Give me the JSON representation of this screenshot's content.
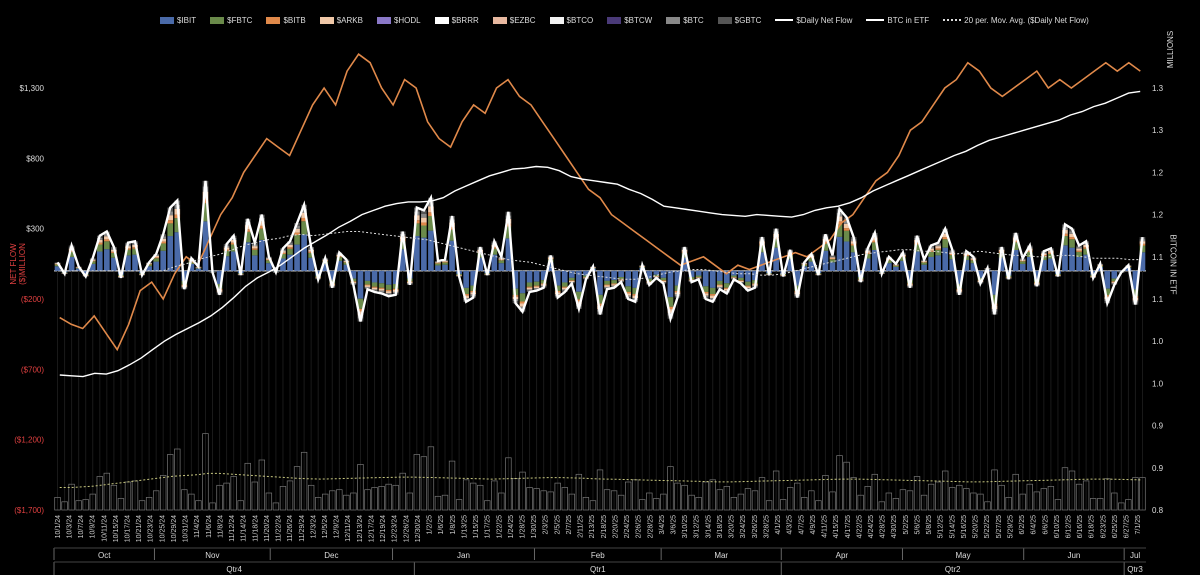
{
  "legend": [
    {
      "label": "$IBIT",
      "color": "#4a6aa8",
      "kind": "box"
    },
    {
      "label": "$FBTC",
      "color": "#6a8a4a",
      "kind": "box"
    },
    {
      "label": "$BITB",
      "color": "#e0894a",
      "kind": "box"
    },
    {
      "label": "$ARKB",
      "color": "#f0c8a8",
      "kind": "box"
    },
    {
      "label": "$HODL",
      "color": "#8a78c8",
      "kind": "box"
    },
    {
      "label": "$BRRR",
      "color": "#ffffff",
      "kind": "box"
    },
    {
      "label": "$EZBC",
      "color": "#e8b8a0",
      "kind": "box"
    },
    {
      "label": "$BTCO",
      "color": "#f2f2f2",
      "kind": "box"
    },
    {
      "label": "$BTCW",
      "color": "#4a3a78",
      "kind": "box"
    },
    {
      "label": "$BTC",
      "color": "#888888",
      "kind": "box"
    },
    {
      "label": "$GBTC",
      "color": "#555555",
      "kind": "box"
    },
    {
      "label": "$Daily Net Flow",
      "color": "#ffffff",
      "kind": "line"
    },
    {
      "label": "BTC in ETF",
      "color": "#ffffff",
      "kind": "line"
    },
    {
      "label": "20 per. Mov. Avg. ($Daily Net Flow)",
      "color": "#dddddd",
      "kind": "dotted"
    }
  ],
  "axes": {
    "left_title": "NET FLOW ($)MILLION",
    "right_title": "BITCOIN IN ETF",
    "right_unit": "MILLIONS",
    "left_ticks": [
      "$1,300",
      "$800",
      "$300",
      "($200)",
      "($700)",
      "($1,200)",
      "($1,700)"
    ],
    "right_ticks": [
      "1.3",
      "1.3",
      "1.2",
      "1.2",
      "1.1",
      "1.1",
      "1.0",
      "1.0",
      "0.9",
      "0.9",
      "0.8"
    ]
  },
  "chart_data": {
    "type": "bar",
    "ylim_left": [
      -1700,
      1300
    ],
    "ylim_right": [
      0.8,
      1.3
    ],
    "date_labels": [
      "10/1/24",
      "10/3/24",
      "10/7/24",
      "10/9/24",
      "10/11/24",
      "10/15/24",
      "10/17/24",
      "10/21/24",
      "10/23/24",
      "10/25/24",
      "10/29/24",
      "10/31/24",
      "11/4/24",
      "11/6/24",
      "11/8/24",
      "11/12/24",
      "11/14/24",
      "11/18/24",
      "11/20/24",
      "11/22/24",
      "11/26/24",
      "11/29/24",
      "12/3/24",
      "12/5/24",
      "12/9/24",
      "12/11/24",
      "12/13/24",
      "12/17/24",
      "12/19/24",
      "12/23/24",
      "12/26/24",
      "12/30/24",
      "1/2/25",
      "1/6/25",
      "1/8/25",
      "1/13/25",
      "1/15/25",
      "1/17/25",
      "1/22/25",
      "1/24/25",
      "1/28/25",
      "1/30/25",
      "2/3/25",
      "2/5/25",
      "2/7/25",
      "2/11/25",
      "2/13/25",
      "2/18/25",
      "2/20/25",
      "2/24/25",
      "2/26/25",
      "2/28/25",
      "3/4/25",
      "3/6/25",
      "3/10/25",
      "3/12/25",
      "3/14/25",
      "3/18/25",
      "3/20/25",
      "3/24/25",
      "3/26/25",
      "3/28/25",
      "4/1/25",
      "4/3/25",
      "4/7/25",
      "4/9/25",
      "4/11/25",
      "4/15/25",
      "4/17/25",
      "4/22/25",
      "4/24/25",
      "4/28/25",
      "4/30/25",
      "5/2/25",
      "5/6/25",
      "5/8/25",
      "5/12/25",
      "5/14/25",
      "5/16/25",
      "5/20/25",
      "5/22/25",
      "5/27/25",
      "5/29/25",
      "6/2/25",
      "6/4/25",
      "6/6/25",
      "6/10/25",
      "6/12/25",
      "6/16/25",
      "6/18/25",
      "6/23/25",
      "6/25/25",
      "6/27/25",
      "7/1/25"
    ],
    "months": [
      "Oct",
      "Nov",
      "Dec",
      "Jan",
      "Feb",
      "Mar",
      "Apr",
      "May",
      "Jun",
      "Jul"
    ],
    "quarters": [
      "Qtr4",
      "Qtr1",
      "Qtr2",
      "Qtr3"
    ],
    "daily_net_flow": [
      60,
      -20,
      180,
      30,
      -40,
      90,
      250,
      280,
      170,
      -50,
      200,
      210,
      -30,
      60,
      120,
      260,
      450,
      500,
      -130,
      90,
      30,
      640,
      -10,
      -170,
      190,
      250,
      -30,
      370,
      200,
      400,
      100,
      -10,
      160,
      210,
      340,
      470,
      170,
      -60,
      90,
      -120,
      130,
      80,
      -100,
      -360,
      -130,
      -150,
      -160,
      -180,
      -170,
      280,
      -100,
      450,
      430,
      520,
      70,
      80,
      390,
      -40,
      -220,
      -190,
      170,
      -30,
      210,
      100,
      420,
      -230,
      -290,
      -150,
      -140,
      -120,
      110,
      -190,
      -150,
      -90,
      -270,
      -60,
      30,
      -310,
      -130,
      -120,
      -80,
      -200,
      -220,
      40,
      -100,
      -50,
      -90,
      -340,
      -190,
      170,
      -80,
      -60,
      -200,
      -220,
      -130,
      -160,
      -60,
      -90,
      -140,
      -120,
      240,
      -30,
      300,
      -40,
      150,
      -190,
      60,
      120,
      -30,
      260,
      110,
      440,
      380,
      240,
      -80,
      160,
      270,
      -20,
      100,
      50,
      130,
      -120,
      250,
      80,
      180,
      200,
      300,
      150,
      -170,
      140,
      100,
      -90,
      20,
      -310,
      170,
      -60,
      270,
      90,
      180,
      -110,
      140,
      160,
      -40,
      330,
      300,
      180,
      210,
      -50,
      50,
      -230,
      -100,
      -10,
      40,
      -240,
      240
    ],
    "btc_in_etf": [
      0.96,
      0.959,
      0.958,
      0.962,
      0.961,
      0.965,
      0.972,
      0.98,
      0.99,
      1.0,
      1.008,
      1.015,
      1.022,
      1.03,
      1.04,
      1.052,
      1.065,
      1.075,
      1.082,
      1.09,
      1.1,
      1.11,
      1.118,
      1.126,
      1.135,
      1.142,
      1.15,
      1.155,
      1.16,
      1.163,
      1.165,
      1.165,
      1.166,
      1.17,
      1.178,
      1.184,
      1.19,
      1.196,
      1.2,
      1.204,
      1.205,
      1.207,
      1.206,
      1.202,
      1.195,
      1.192,
      1.19,
      1.188,
      1.186,
      1.18,
      1.175,
      1.168,
      1.16,
      1.158,
      1.156,
      1.154,
      1.152,
      1.15,
      1.149,
      1.148,
      1.15,
      1.149,
      1.148,
      1.147,
      1.15,
      1.155,
      1.158,
      1.16,
      1.164,
      1.17,
      1.178,
      1.184,
      1.19,
      1.196,
      1.202,
      1.208,
      1.214,
      1.22,
      1.225,
      1.232,
      1.238,
      1.242,
      1.246,
      1.25,
      1.254,
      1.258,
      1.262,
      1.268,
      1.272,
      1.278,
      1.282,
      1.288,
      1.294,
      1.296
    ],
    "bitb_line": [
      1.028,
      1.02,
      1.015,
      1.03,
      1.01,
      0.99,
      1.02,
      1.06,
      1.07,
      1.05,
      1.08,
      1.1,
      1.09,
      1.12,
      1.15,
      1.17,
      1.2,
      1.22,
      1.24,
      1.23,
      1.22,
      1.25,
      1.28,
      1.3,
      1.28,
      1.32,
      1.34,
      1.33,
      1.3,
      1.28,
      1.31,
      1.3,
      1.26,
      1.24,
      1.23,
      1.26,
      1.28,
      1.27,
      1.3,
      1.31,
      1.29,
      1.28,
      1.26,
      1.24,
      1.22,
      1.2,
      1.18,
      1.17,
      1.15,
      1.14,
      1.13,
      1.12,
      1.11,
      1.1,
      1.09,
      1.095,
      1.1,
      1.09,
      1.08,
      1.09,
      1.085,
      1.09,
      1.095,
      1.1,
      1.105,
      1.1,
      1.11,
      1.12,
      1.14,
      1.15,
      1.17,
      1.19,
      1.2,
      1.22,
      1.25,
      1.26,
      1.28,
      1.3,
      1.31,
      1.33,
      1.32,
      1.3,
      1.29,
      1.3,
      1.31,
      1.32,
      1.3,
      1.31,
      1.3,
      1.31,
      1.32,
      1.33,
      1.32,
      1.33,
      1.32
    ],
    "mov_avg_20": [
      0,
      0,
      0,
      0,
      0,
      0,
      0,
      0,
      0,
      0,
      30,
      50,
      80,
      100,
      120,
      150,
      180,
      200,
      220,
      230,
      250,
      260,
      250,
      260,
      270,
      280,
      280,
      270,
      260,
      250,
      240,
      230,
      220,
      200,
      180,
      160,
      140,
      120,
      100,
      80,
      70,
      60,
      40,
      20,
      0,
      -20,
      -30,
      -40,
      -50,
      -60,
      -60,
      -50,
      -30,
      -10,
      0,
      10,
      10,
      0,
      -10,
      -20,
      -20,
      -30,
      -30,
      -20,
      0,
      20,
      40,
      60,
      80,
      100,
      120,
      130,
      140,
      150,
      150,
      140,
      140,
      130,
      120,
      130,
      140,
      130,
      120,
      110,
      110,
      100,
      100,
      110,
      110,
      100,
      90,
      90,
      90,
      80,
      80
    ],
    "volume_mov_avg": [
      -1540,
      -1540,
      -1535,
      -1530,
      -1520,
      -1510,
      -1500,
      -1490,
      -1480,
      -1470,
      -1460,
      -1455,
      -1450,
      -1440,
      -1440,
      -1445,
      -1450,
      -1455,
      -1460,
      -1465,
      -1470,
      -1475,
      -1478,
      -1480,
      -1478,
      -1476,
      -1474,
      -1472,
      -1470,
      -1468,
      -1466,
      -1466,
      -1468,
      -1470,
      -1472,
      -1474,
      -1476,
      -1478,
      -1480,
      -1478,
      -1476,
      -1474,
      -1472,
      -1470,
      -1470,
      -1472,
      -1474,
      -1478,
      -1480,
      -1482,
      -1484,
      -1486,
      -1488,
      -1490,
      -1492,
      -1494,
      -1496,
      -1498,
      -1500,
      -1500,
      -1498,
      -1496,
      -1494,
      -1492,
      -1490,
      -1488,
      -1486,
      -1484,
      -1482,
      -1480,
      -1480,
      -1482,
      -1484,
      -1486,
      -1488,
      -1490,
      -1492,
      -1494,
      -1496,
      -1498,
      -1500,
      -1500,
      -1498,
      -1496,
      -1494,
      -1492,
      -1490,
      -1488,
      -1486,
      -1484,
      -1482,
      -1480,
      -1480,
      -1482,
      -1484,
      -1486
    ]
  }
}
